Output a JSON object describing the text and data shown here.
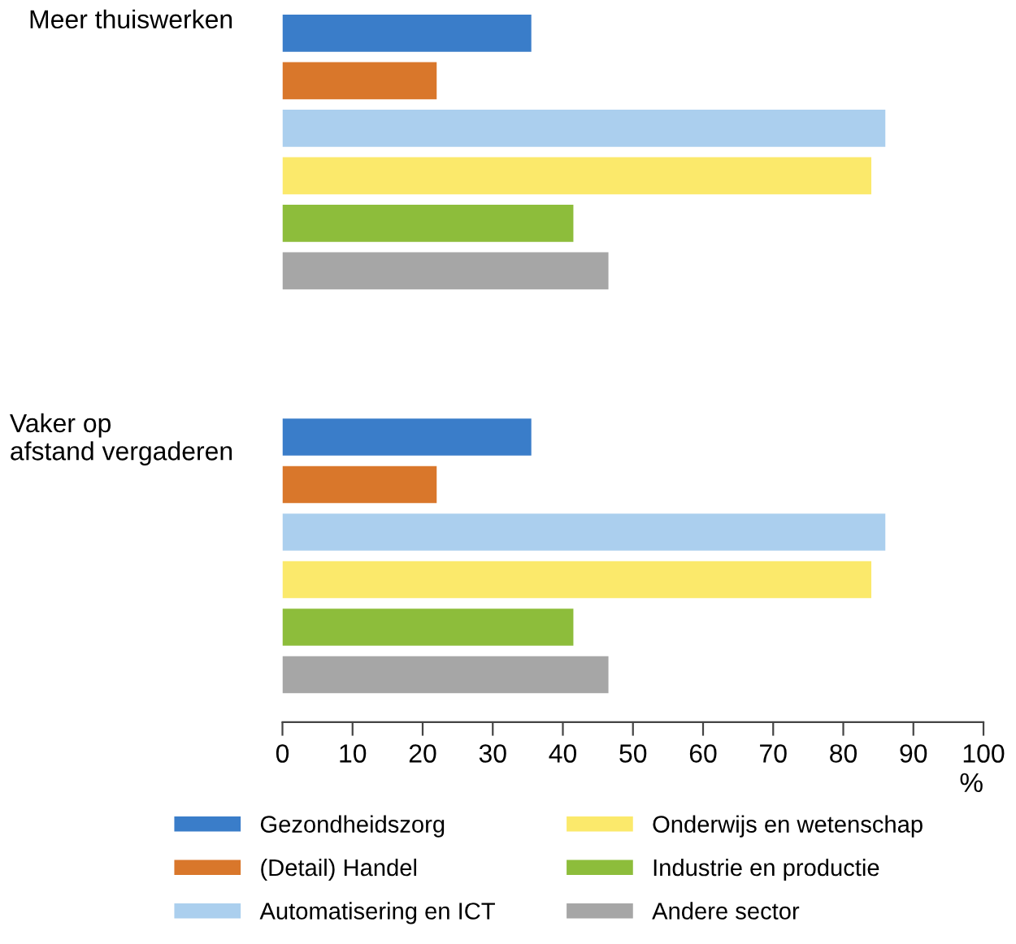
{
  "chart_data": {
    "type": "bar",
    "orientation": "horizontal",
    "categories": [
      "Meer thuiswerken",
      "Vaker op\nafstand vergaderen"
    ],
    "series": [
      {
        "name": "Gezondheidszorg",
        "color": "#3a7dc9",
        "values": [
          35.5,
          35.5
        ]
      },
      {
        "name": "(Detail) Handel",
        "color": "#d9772b",
        "values": [
          22,
          22
        ]
      },
      {
        "name": "Automatisering en ICT",
        "color": "#abcfee",
        "values": [
          86,
          86
        ]
      },
      {
        "name": "Onderwijs en wetenschap",
        "color": "#fbe96b",
        "values": [
          84,
          84
        ]
      },
      {
        "name": "Industrie en productie",
        "color": "#8dbd3b",
        "values": [
          41.5,
          41.5
        ]
      },
      {
        "name": "Andere sector",
        "color": "#a6a6a6",
        "values": [
          46.5,
          46.5
        ]
      }
    ],
    "xlabel": "%",
    "xlim": [
      0,
      100
    ],
    "xticks": [
      0,
      10,
      20,
      30,
      40,
      50,
      60,
      70,
      80,
      90,
      100
    ],
    "grid": false,
    "legend": "bottom"
  }
}
